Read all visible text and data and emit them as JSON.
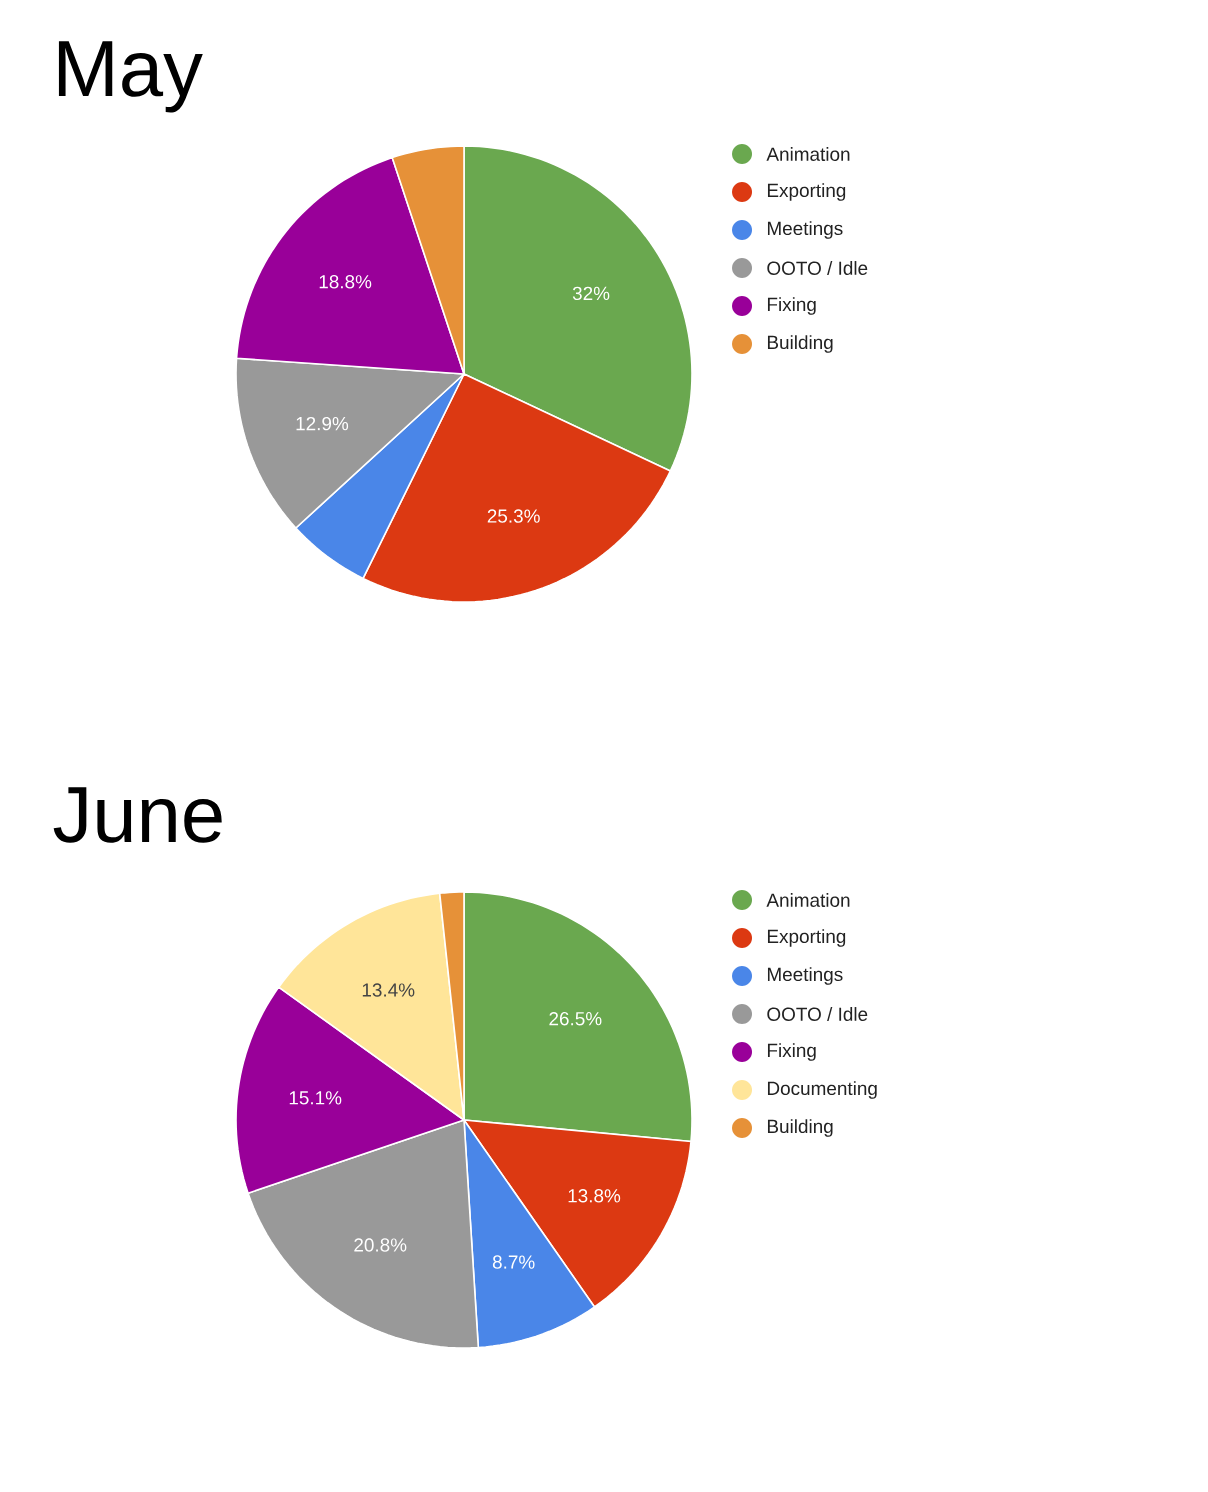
{
  "chart_data": [
    {
      "type": "pie",
      "title": "May",
      "legend": "right",
      "categories": [
        "Animation",
        "Exporting",
        "Meetings",
        "OOTO / Idle",
        "Fixing",
        "Building"
      ],
      "values": [
        32,
        25.3,
        5.9,
        12.9,
        18.8,
        5.1
      ],
      "value_labels": [
        "32%",
        "25.3%",
        null,
        "12.9%",
        "18.8%",
        null
      ],
      "colors": [
        "#6aa84f",
        "#dc3912",
        "#4a86e8",
        "#999999",
        "#990099",
        "#e69138"
      ]
    },
    {
      "type": "pie",
      "title": "June",
      "legend": "right",
      "categories": [
        "Animation",
        "Exporting",
        "Meetings",
        "OOTO / Idle",
        "Fixing",
        "Documenting",
        "Building"
      ],
      "values": [
        26.5,
        13.8,
        8.7,
        20.8,
        15.1,
        13.4,
        1.7
      ],
      "value_labels": [
        "26.5%",
        "13.8%",
        "8.7%",
        "20.8%",
        "15.1%",
        "13.4%",
        null
      ],
      "colors": [
        "#6aa84f",
        "#dc3912",
        "#4a86e8",
        "#999999",
        "#990099",
        "#ffe599",
        "#e69138"
      ]
    }
  ]
}
